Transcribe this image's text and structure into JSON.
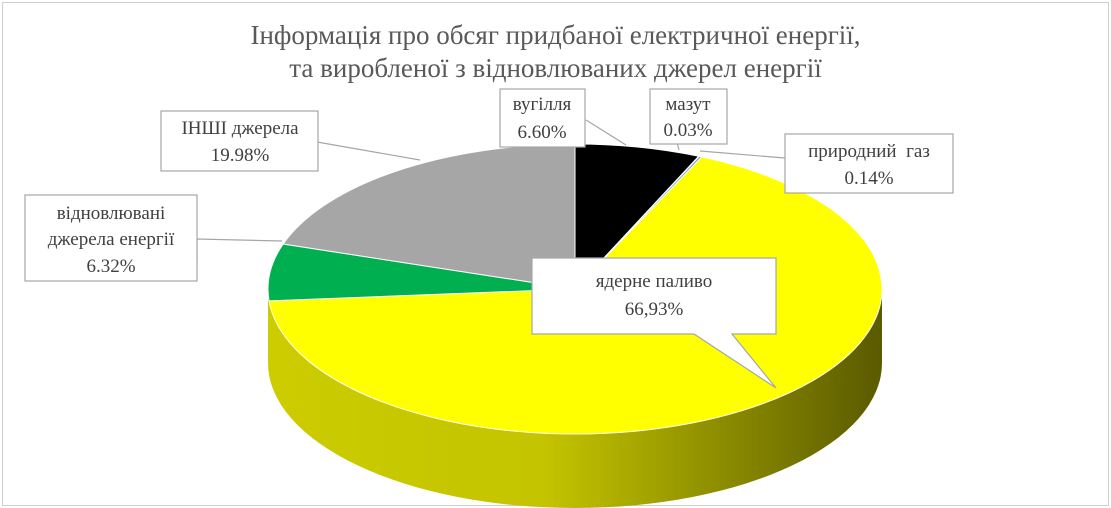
{
  "chart_data": {
    "type": "pie",
    "title_lines": [
      "Інформація про обсяг придбаної електричної енергії,",
      "та виробленої з відновлюваних джерел енергії"
    ],
    "slices": [
      {
        "key": "coal",
        "label": "вугілля",
        "value": 6.6,
        "display": "6.60%",
        "color": "#000000"
      },
      {
        "key": "fuel",
        "label": "мазут",
        "value": 0.03,
        "display": "0.03%",
        "color": "#4472c4"
      },
      {
        "key": "gas",
        "label": "природний  газ",
        "value": 0.14,
        "display": "0.14%",
        "color": "#5b9bd5"
      },
      {
        "key": "nuclear",
        "label": "ядерне паливо",
        "value": 66.93,
        "display": "66,93%",
        "color": "#ffff00"
      },
      {
        "key": "renew",
        "label_lines": [
          "відновлювані",
          "джерела енергії"
        ],
        "value": 6.32,
        "display": "6.32%",
        "color": "#00b050"
      },
      {
        "key": "other",
        "label": "ІНШІ джерела",
        "value": 19.98,
        "display": "19.98%",
        "color": "#a6a6a6"
      }
    ]
  }
}
